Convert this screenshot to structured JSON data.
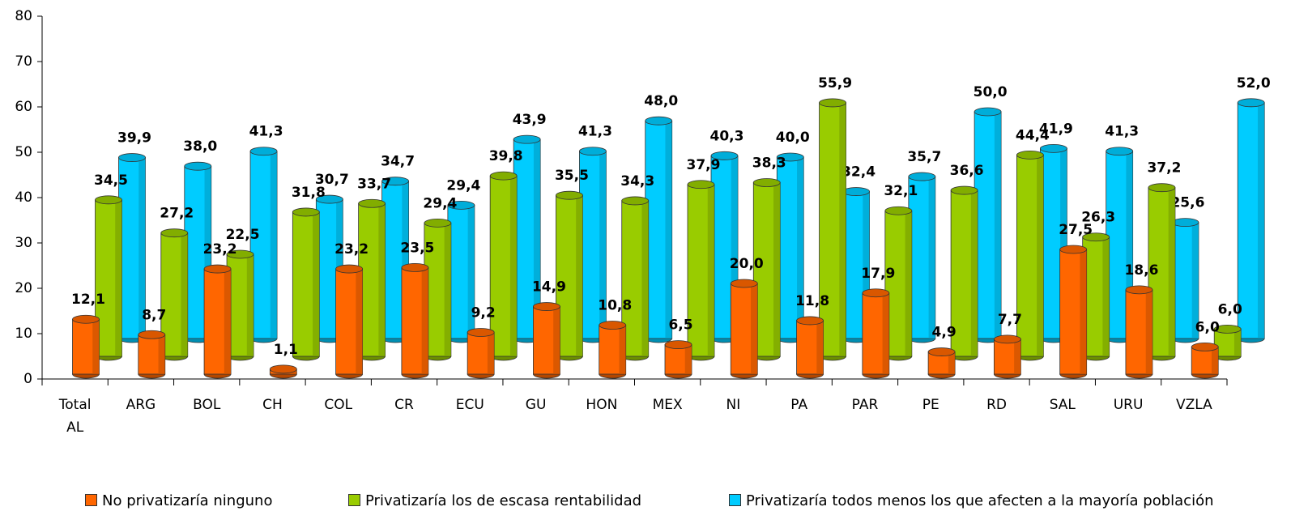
{
  "chart_data": {
    "type": "bar3d",
    "categories": [
      "Total AL",
      "ARG",
      "BOL",
      "CH",
      "COL",
      "CR",
      "ECU",
      "GU",
      "HON",
      "MEX",
      "NI",
      "PA",
      "PAR",
      "PE",
      "RD",
      "SAL",
      "URU",
      "VZLA"
    ],
    "series": [
      {
        "name": "No privatizaría ninguno",
        "color": "#ff6600",
        "values": [
          12.1,
          8.7,
          23.2,
          1.1,
          23.2,
          23.5,
          9.2,
          14.9,
          10.8,
          6.5,
          20.0,
          11.8,
          17.9,
          4.9,
          7.7,
          27.5,
          18.6,
          6.0
        ],
        "value_labels": [
          "12,1",
          "8,7",
          "23,2",
          "1,1",
          "23,2",
          "23,5",
          "9,2",
          "14,9",
          "10,8",
          "6,5",
          "20,0",
          "11,8",
          "17,9",
          "4,9",
          "7,7",
          "27,5",
          "18,6",
          "6,0"
        ]
      },
      {
        "name": "Privatizaría los de escasa rentabilidad",
        "color": "#99cc00",
        "values": [
          34.5,
          27.2,
          22.5,
          31.8,
          33.7,
          29.4,
          39.8,
          35.5,
          34.3,
          37.9,
          38.3,
          55.9,
          32.1,
          36.6,
          44.4,
          26.3,
          37.2,
          6.0
        ],
        "value_labels": [
          "34,5",
          "27,2",
          "22,5",
          "31,8",
          "33,7",
          "29,4",
          "39,8",
          "35,5",
          "34,3",
          "37,9",
          "38,3",
          "55,9",
          "32,1",
          "36,6",
          "44,4",
          "26,3",
          "37,2",
          "6,0"
        ]
      },
      {
        "name": "Privatizaría todos menos los que afecten a la mayoría población",
        "color": "#00ccff",
        "values": [
          39.9,
          38.0,
          41.3,
          30.7,
          34.7,
          29.4,
          43.9,
          41.3,
          48.0,
          40.3,
          40.0,
          32.4,
          35.7,
          50.0,
          41.9,
          41.3,
          25.6,
          52.0
        ],
        "value_labels": [
          "39,9",
          "38,0",
          "41,3",
          "30,7",
          "34,7",
          "29,4",
          "43,9",
          "41,3",
          "48,0",
          "40,3",
          "40,0",
          "32,4",
          "35,7",
          "50,0",
          "41,9",
          "41,3",
          "25,6",
          "52,0"
        ]
      }
    ],
    "ylim": [
      0,
      80
    ],
    "yticks": [
      0,
      10,
      20,
      30,
      40,
      50,
      60,
      70,
      80
    ],
    "legend": "bottom"
  }
}
